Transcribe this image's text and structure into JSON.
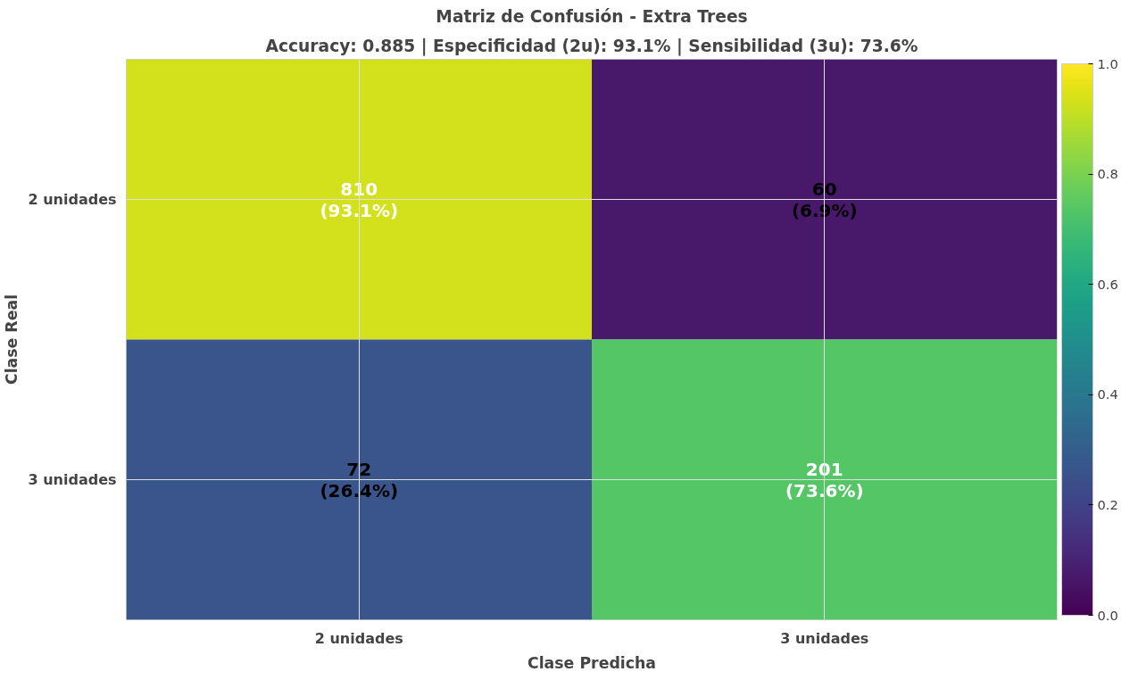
{
  "chart_data": {
    "type": "heatmap",
    "title": "Matriz de Confusión - Extra Trees",
    "subtitle": "Accuracy: 0.885 | Especificidad (2u): 93.1% | Sensibilidad (3u): 73.6%",
    "xlabel": "Clase Predicha",
    "ylabel": "Clase Real",
    "categories": [
      "2 unidades",
      "3 unidades"
    ],
    "y_categories": [
      "2 unidades",
      "3 unidades"
    ],
    "cells": [
      [
        0.931,
        0.069
      ],
      [
        0.264,
        0.736
      ]
    ],
    "cell_labels": [
      [
        "810\n(93.1%)",
        "60\n(6.9%)"
      ],
      [
        "72\n(26.4%)",
        "201\n(73.6%)"
      ]
    ],
    "clim": [
      0,
      1
    ],
    "cticks": [
      {
        "value": 0,
        "label": "0.0"
      },
      {
        "value": 0.2,
        "label": "0.2"
      },
      {
        "value": 0.4,
        "label": "0.4"
      },
      {
        "value": 0.6,
        "label": "0.6"
      },
      {
        "value": 0.8,
        "label": "0.8"
      },
      {
        "value": 1,
        "label": "1.0"
      }
    ],
    "grid": true
  }
}
